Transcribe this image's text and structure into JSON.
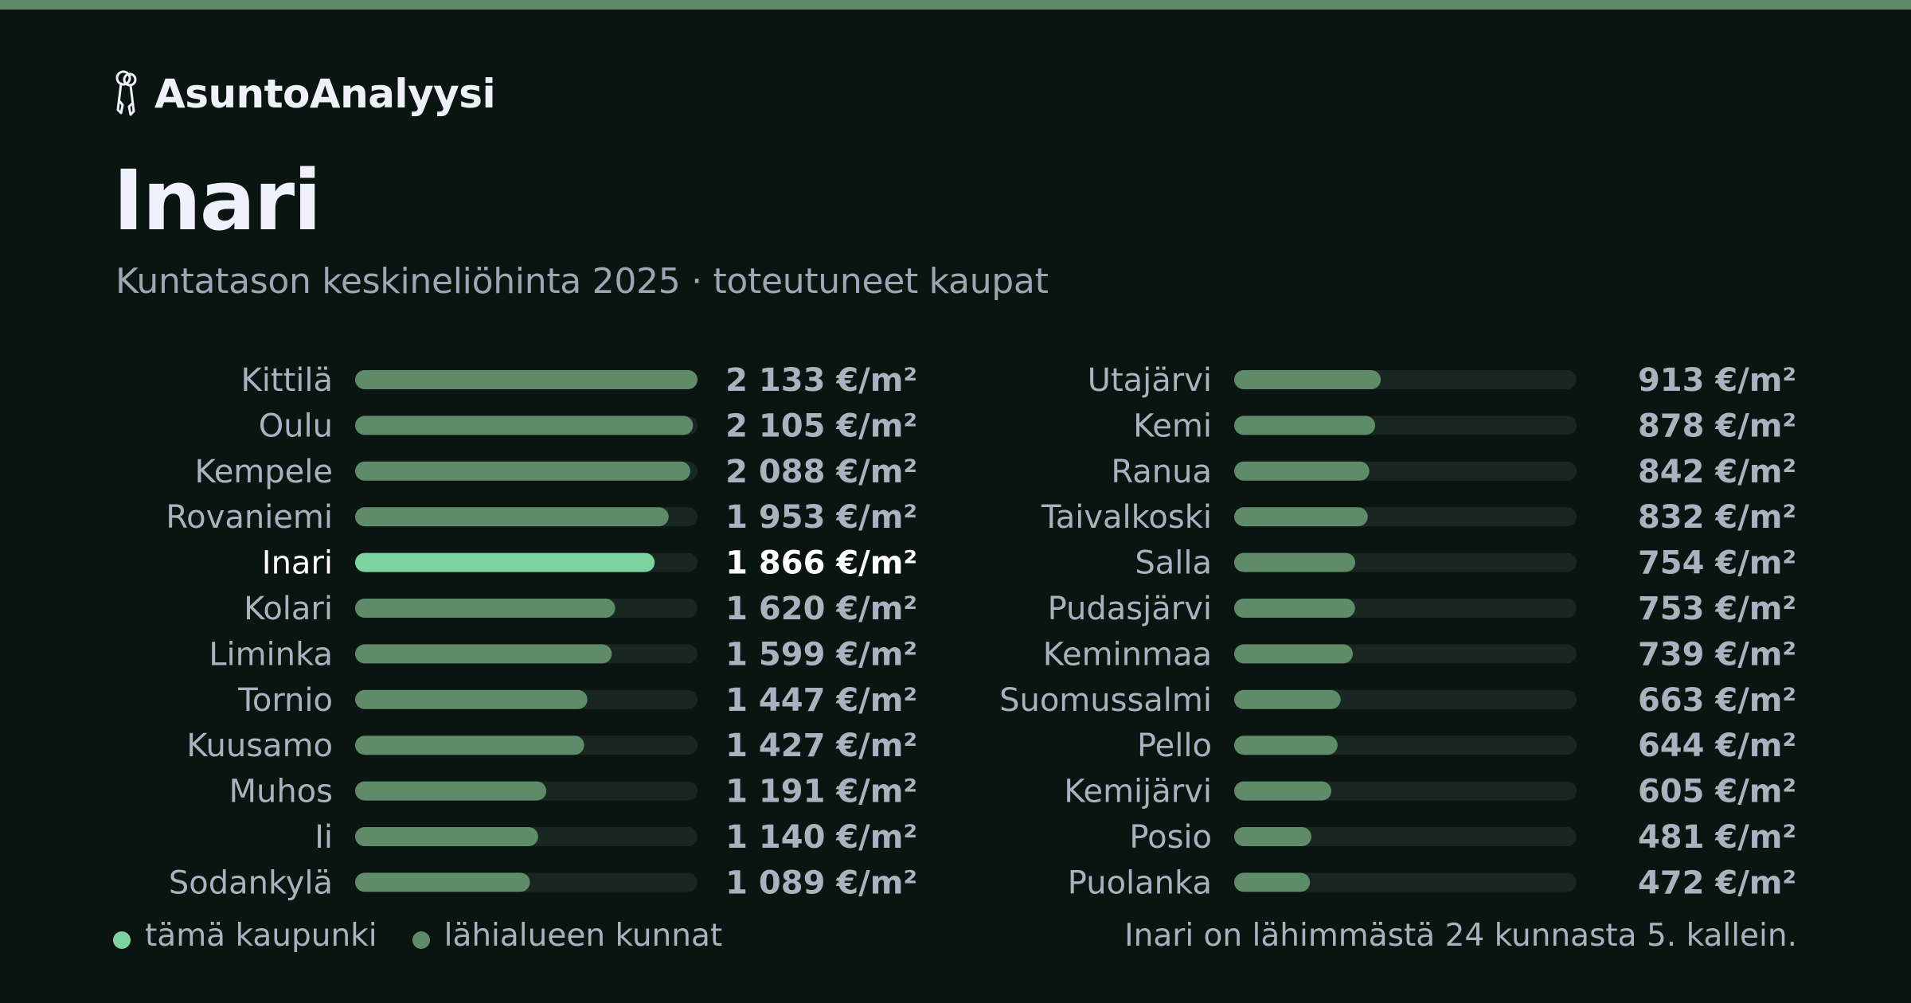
{
  "brand": {
    "name": "AsuntoAnalyysi",
    "icon": "keys-icon"
  },
  "title": "Inari",
  "subtitle": "Kuntatason keskineliöhinta 2025 · toteutuneet kaupat",
  "colors": {
    "accent": "#7dd3a0",
    "bar": "#5f8c68",
    "track": "#1a2622",
    "stripe": "#5f8c68",
    "background": "#0a1512"
  },
  "chart_data": {
    "type": "bar",
    "orientation": "horizontal",
    "unit": "€/m²",
    "highlight": "Inari",
    "xlim": [
      0,
      2133
    ],
    "categories": [
      "Kittilä",
      "Oulu",
      "Kempele",
      "Rovaniemi",
      "Inari",
      "Kolari",
      "Liminka",
      "Tornio",
      "Kuusamo",
      "Muhos",
      "Ii",
      "Sodankylä",
      "Utajärvi",
      "Kemi",
      "Ranua",
      "Taivalkoski",
      "Salla",
      "Pudasjärvi",
      "Keminmaa",
      "Suomussalmi",
      "Pello",
      "Kemijärvi",
      "Posio",
      "Puolanka"
    ],
    "values": [
      2133,
      2105,
      2088,
      1953,
      1866,
      1620,
      1599,
      1447,
      1427,
      1191,
      1140,
      1089,
      913,
      878,
      842,
      832,
      754,
      753,
      739,
      663,
      644,
      605,
      481,
      472
    ],
    "value_labels": [
      "2 133 €/m²",
      "2 105 €/m²",
      "2 088 €/m²",
      "1 953 €/m²",
      "1 866 €/m²",
      "1 620 €/m²",
      "1 599 €/m²",
      "1 447 €/m²",
      "1 427 €/m²",
      "1 191 €/m²",
      "1 140 €/m²",
      "1 089 €/m²",
      "913 €/m²",
      "878 €/m²",
      "842 €/m²",
      "832 €/m²",
      "754 €/m²",
      "753 €/m²",
      "739 €/m²",
      "663 €/m²",
      "644 €/m²",
      "605 €/m²",
      "481 €/m²",
      "472 €/m²"
    ]
  },
  "legend": {
    "this_city": "tämä kaupunki",
    "nearby": "lähialueen kunnat"
  },
  "footnote": "Inari on lähimmästä 24 kunnasta 5. kallein."
}
